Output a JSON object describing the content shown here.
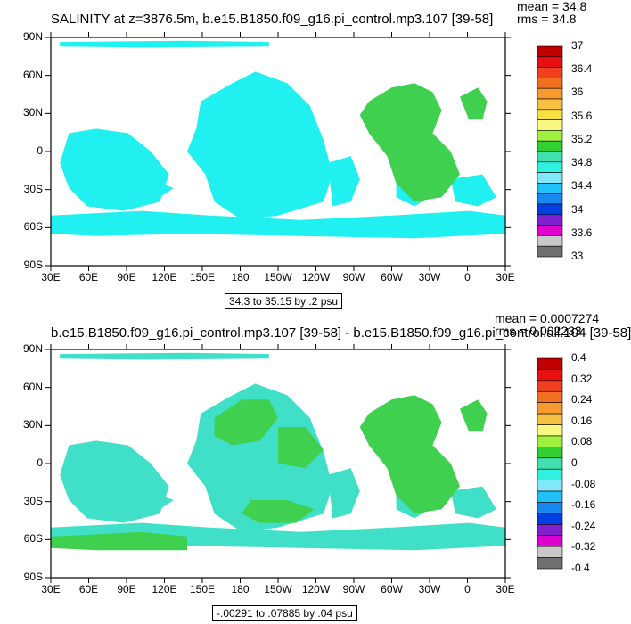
{
  "chart_data": [
    {
      "type": "heatmap",
      "title": "SALINITY at z=3876.5m, b.e15.B1850.f09_g16.pi_control.mp3.107 [39-58]",
      "stats": [
        "mean = 34.8",
        "rms = 34.8"
      ],
      "x_ticks": [
        "30E",
        "60E",
        "90E",
        "120E",
        "150E",
        "180",
        "150W",
        "120W",
        "90W",
        "60W",
        "30W",
        "0",
        "30E"
      ],
      "y_ticks": [
        "90N",
        "60N",
        "30N",
        "0",
        "30S",
        "60S",
        "90S"
      ],
      "contour_info": "34.3 to 35.15 by .2 psu",
      "colorbar": {
        "labels": [
          "37",
          "36.4",
          "36",
          "35.6",
          "35.2",
          "34.8",
          "34.4",
          "34",
          "33.6",
          "33"
        ],
        "colors": [
          "#c00000",
          "#e81010",
          "#f04020",
          "#f07020",
          "#f89a30",
          "#f8c040",
          "#f8e040",
          "#f8f880",
          "#a0f040",
          "#30d030",
          "#40e0b0",
          "#30f0e0",
          "#80e8f8",
          "#20c0f8",
          "#1888f0",
          "#0040e0",
          "#8020d0",
          "#e000d0",
          "#c8c8c8",
          "#707070"
        ]
      },
      "fill_colors": {
        "main": "#20f0f0",
        "secondary": "#40d050"
      }
    },
    {
      "type": "heatmap",
      "title": "b.e15.B1850.f09_g16.pi_control.mp3.107 [39-58] - b.e15.B1850.f09_g16.pi_control.all.104 [39-58]",
      "stats": [
        "mean = 0.0007274",
        "rms = 0.002233"
      ],
      "x_ticks": [
        "30E",
        "60E",
        "90E",
        "120E",
        "150E",
        "180",
        "150W",
        "120W",
        "90W",
        "60W",
        "30W",
        "0",
        "30E"
      ],
      "y_ticks": [
        "90N",
        "60N",
        "30N",
        "0",
        "30S",
        "60S",
        "90S"
      ],
      "contour_info": "-.00291 to .07885 by .04 psu",
      "colorbar": {
        "labels": [
          "0.4",
          "0.32",
          "0.24",
          "0.16",
          "0.08",
          "0",
          "-0.08",
          "-0.16",
          "-0.24",
          "-0.32",
          "-0.4"
        ],
        "colors": [
          "#c00000",
          "#e81010",
          "#f04020",
          "#f07020",
          "#f89a30",
          "#f8c040",
          "#f8f880",
          "#a0f040",
          "#30d030",
          "#40e0b0",
          "#30f0e0",
          "#80e8f8",
          "#20c0f8",
          "#1888f0",
          "#0040e0",
          "#8020d0",
          "#e000d0",
          "#c8c8c8",
          "#707070"
        ]
      },
      "fill_colors": {
        "main": "#40e0c8",
        "secondary": "#40d050"
      }
    }
  ]
}
